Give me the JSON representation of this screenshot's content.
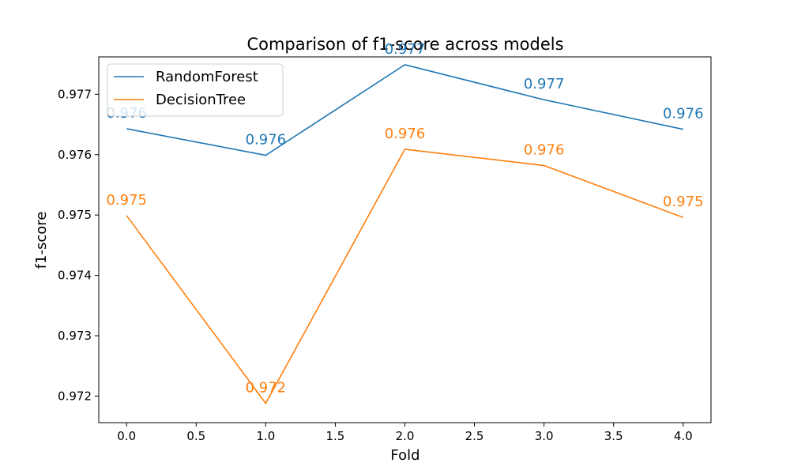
{
  "chart_data": {
    "type": "line",
    "title": "Comparison of f1-score across models",
    "xlabel": "Fold",
    "ylabel": "f1-score",
    "x": [
      0,
      1,
      2,
      3,
      4
    ],
    "xlim": [
      -0.2,
      4.2
    ],
    "ylim": [
      0.97156,
      0.97762
    ],
    "xticks": [
      0.0,
      0.5,
      1.0,
      1.5,
      2.0,
      2.5,
      3.0,
      3.5,
      4.0
    ],
    "xtick_labels": [
      "0.0",
      "0.5",
      "1.0",
      "1.5",
      "2.0",
      "2.5",
      "3.0",
      "3.5",
      "4.0"
    ],
    "yticks": [
      0.972,
      0.973,
      0.974,
      0.975,
      0.976,
      0.977
    ],
    "ytick_labels": [
      "0.972",
      "0.973",
      "0.974",
      "0.975",
      "0.976",
      "0.977"
    ],
    "grid": false,
    "legend_position": "top-left",
    "series": [
      {
        "name": "RandomForest",
        "color": "#1f77b4",
        "values": [
          0.97643,
          0.97599,
          0.97749,
          0.97691,
          0.97642
        ],
        "labels": [
          "0.976",
          "0.976",
          "0.977",
          "0.977",
          "0.976"
        ]
      },
      {
        "name": "DecisionTree",
        "color": "#ff7f0e",
        "values": [
          0.97499,
          0.97188,
          0.97609,
          0.97582,
          0.97496
        ],
        "labels": [
          "0.975",
          "0.972",
          "0.976",
          "0.976",
          "0.975"
        ]
      }
    ]
  }
}
